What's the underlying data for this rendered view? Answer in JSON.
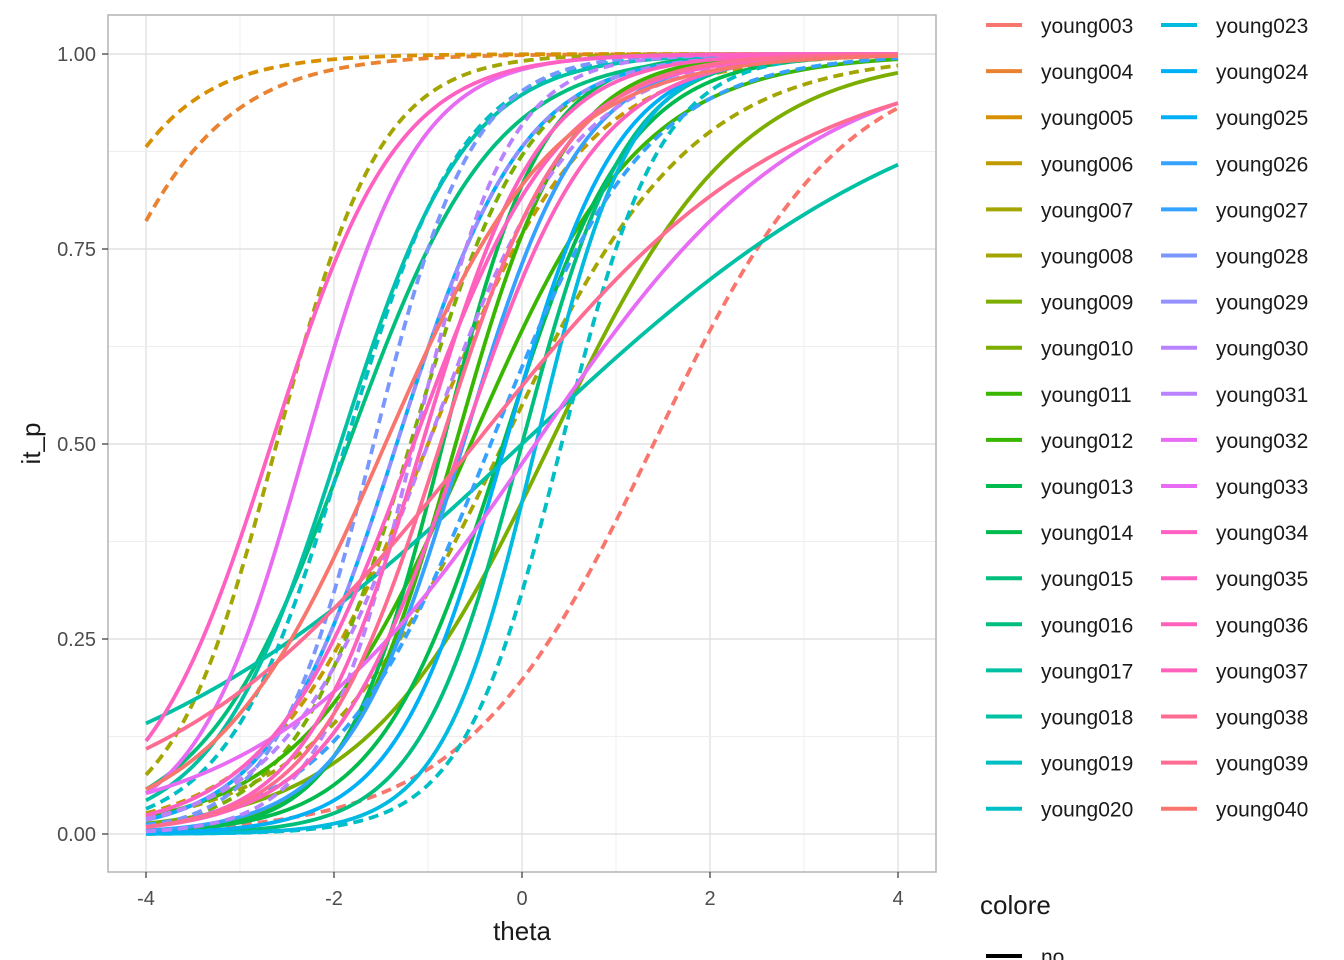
{
  "chart_data": {
    "type": "line",
    "xlabel": "theta",
    "ylabel": "it_p",
    "xlim": [
      -4,
      4
    ],
    "ylim": [
      0,
      1
    ],
    "x_ticks": [
      -4,
      -2,
      0,
      2,
      4
    ],
    "y_ticks": [
      0,
      0.25,
      0.5,
      0.75,
      1
    ],
    "x_tick_labels": [
      "-4",
      "-2",
      "0",
      "2",
      "4"
    ],
    "y_tick_labels": [
      "0.00",
      "0.25",
      "0.50",
      "0.75",
      "1.00"
    ],
    "grid": true,
    "legend_position": "right",
    "legend_title": "colore",
    "legend2_first_entry": "no",
    "series": [
      {
        "name": "young003",
        "color": "#F8766D",
        "a": 1.0,
        "b": 1.4,
        "dashed": true
      },
      {
        "name": "young004",
        "color": "#EA8331",
        "a": 1.3,
        "b": -6.5,
        "dashed": true
      },
      {
        "name": "young005",
        "color": "#D89000",
        "a": 1.5,
        "b": -8.0,
        "dashed": true
      },
      {
        "name": "young006",
        "color": "#C09B00",
        "a": 1.2,
        "b": -1.2,
        "dashed": true
      },
      {
        "name": "young007",
        "color": "#A3A500",
        "a": 1.8,
        "b": -4.7,
        "dashed": true
      },
      {
        "name": "young008",
        "color": "#A3A500",
        "a": 1.0,
        "b": -0.2,
        "dashed": true
      },
      {
        "name": "young009",
        "color": "#7CAE00",
        "a": 1.6,
        "b": -1.9,
        "dashed": true
      },
      {
        "name": "young010",
        "color": "#7CAE00",
        "a": 1.0,
        "b": 0.3,
        "dashed": false
      },
      {
        "name": "young011",
        "color": "#39B600",
        "a": 1.7,
        "b": -1.2,
        "dashed": false
      },
      {
        "name": "young012",
        "color": "#39B600",
        "a": 1.1,
        "b": -0.6,
        "dashed": false
      },
      {
        "name": "young013",
        "color": "#00BB4E",
        "a": 1.5,
        "b": -0.3,
        "dashed": false
      },
      {
        "name": "young014",
        "color": "#00BB4E",
        "a": 1.9,
        "b": -1.6,
        "dashed": false
      },
      {
        "name": "young015",
        "color": "#00BF7D",
        "a": 1.8,
        "b": 0.0,
        "dashed": false
      },
      {
        "name": "young016",
        "color": "#00BF7D",
        "a": 1.3,
        "b": -2.4,
        "dashed": false
      },
      {
        "name": "young017",
        "color": "#00C1A3",
        "a": 0.45,
        "b": 0.0,
        "dashed": false
      },
      {
        "name": "young018",
        "color": "#00C1A3",
        "a": 1.5,
        "b": -2.9,
        "dashed": false
      },
      {
        "name": "young019",
        "color": "#00BFC4",
        "a": 1.9,
        "b": 0.8,
        "dashed": true
      },
      {
        "name": "young020",
        "color": "#00BFC4",
        "a": 1.6,
        "b": -3.0,
        "dashed": true
      },
      {
        "name": "young023",
        "color": "#00BAE0",
        "a": 2.0,
        "b": 0.3,
        "dashed": false
      },
      {
        "name": "young024",
        "color": "#00B0F6",
        "a": 1.5,
        "b": -2.0,
        "dashed": false
      },
      {
        "name": "young025",
        "color": "#00B0F6",
        "a": 1.7,
        "b": -0.3,
        "dashed": false
      },
      {
        "name": "young026",
        "color": "#35A2FF",
        "a": 1.2,
        "b": -0.4,
        "dashed": true
      },
      {
        "name": "young027",
        "color": "#35A2FF",
        "a": 1.6,
        "b": -1.0,
        "dashed": false
      },
      {
        "name": "young028",
        "color": "#7997FF",
        "a": 1.9,
        "b": -3.0,
        "dashed": true
      },
      {
        "name": "young029",
        "color": "#9590FF",
        "a": 1.5,
        "b": -2.0,
        "dashed": true
      },
      {
        "name": "young030",
        "color": "#B983FF",
        "a": 2.0,
        "b": -2.3,
        "dashed": true
      },
      {
        "name": "young031",
        "color": "#B983FF",
        "a": 1.3,
        "b": -1.3,
        "dashed": true
      },
      {
        "name": "young032",
        "color": "#E76BF3",
        "a": 1.7,
        "b": -3.9,
        "dashed": false
      },
      {
        "name": "young033",
        "color": "#E76BF3",
        "a": 0.7,
        "b": 0.1,
        "dashed": false
      },
      {
        "name": "young034",
        "color": "#FF61C3",
        "a": 1.5,
        "b": -4.0,
        "dashed": false
      },
      {
        "name": "young035",
        "color": "#FF61C3",
        "a": 1.3,
        "b": -1.5,
        "dashed": false
      },
      {
        "name": "young036",
        "color": "#FF62BC",
        "a": 1.6,
        "b": -1.7,
        "dashed": false
      },
      {
        "name": "young037",
        "color": "#FF62BC",
        "a": 1.4,
        "b": -0.9,
        "dashed": false
      },
      {
        "name": "young038",
        "color": "#FF6C91",
        "a": 0.6,
        "b": -0.3,
        "dashed": false
      },
      {
        "name": "young039",
        "color": "#FF6C91",
        "a": 1.5,
        "b": -1.3,
        "dashed": false
      },
      {
        "name": "young040",
        "color": "#F8766D",
        "a": 1.1,
        "b": -1.6,
        "dashed": false
      }
    ]
  }
}
